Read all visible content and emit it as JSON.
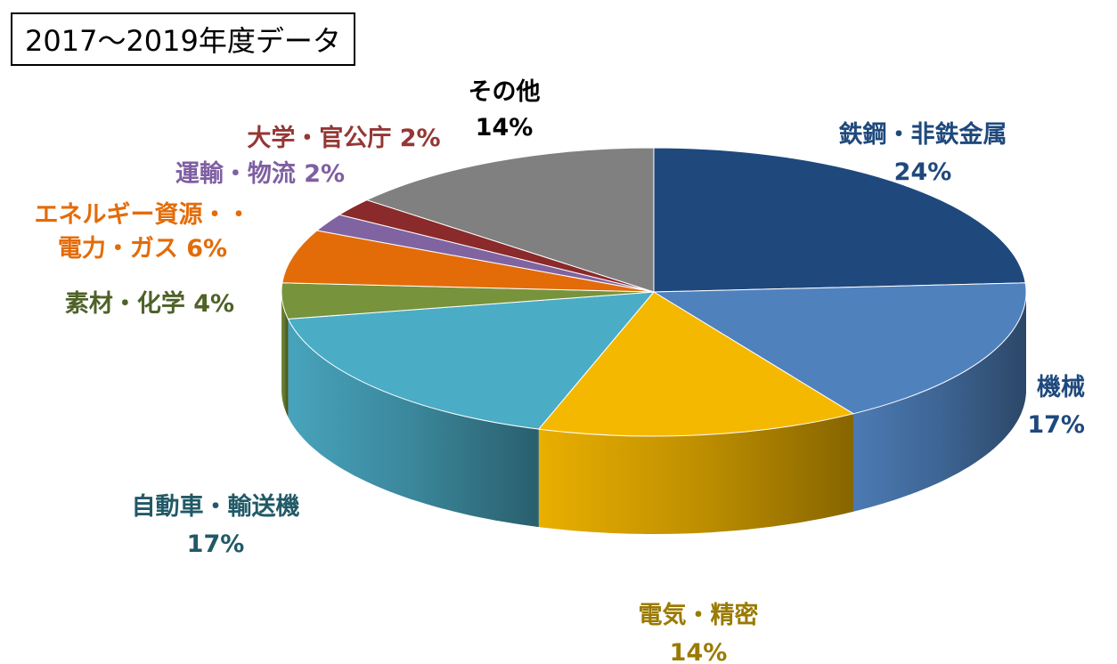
{
  "chart_data": {
    "type": "pie",
    "title": "2017〜2019年度データ",
    "categories": [
      "鉄鋼・非鉄金属",
      "機械",
      "電気・精密",
      "自動車・輸送機",
      "素材・化学",
      "エネルギー資源・電力・ガス",
      "運輸・物流",
      "大学・官公庁",
      "その他"
    ],
    "values": [
      24,
      17,
      14,
      17,
      4,
      6,
      2,
      2,
      14
    ],
    "value_labels": [
      "24%",
      "17%",
      "14%",
      "17%",
      "4%",
      "6%",
      "2%",
      "2%",
      "14%"
    ],
    "colors": [
      "#1f497d",
      "#4f81bd",
      "#f5b800",
      "#4bacc6",
      "#77933c",
      "#e36c09",
      "#8064a2",
      "#8b2a2a",
      "#808080"
    ],
    "label_colors": [
      "#1f497d",
      "#1f497d",
      "#9a7a00",
      "#215967",
      "#4f6228",
      "#e36c09",
      "#7f5fa2",
      "#953735",
      "#000000"
    ],
    "legend": "none",
    "style": "3d-pie"
  }
}
